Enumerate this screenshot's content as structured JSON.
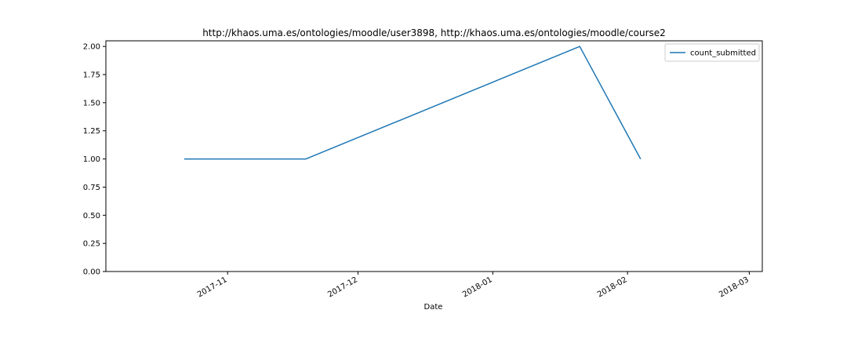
{
  "chart_data": {
    "type": "line",
    "title": "http://khaos.uma.es/ontologies/moodle/user3898, http://khaos.uma.es/ontologies/moodle/course2",
    "xlabel": "Date",
    "ylabel": "",
    "x_scale": "date",
    "xlim": [
      "2017-10-04",
      "2018-03-04"
    ],
    "ylim": [
      0,
      2.05
    ],
    "grid": false,
    "legend_position": "top-right",
    "x_ticks": [
      {
        "value": "2017-11-01",
        "label": "2017-11"
      },
      {
        "value": "2017-12-01",
        "label": "2017-12"
      },
      {
        "value": "2018-01-01",
        "label": "2018-01"
      },
      {
        "value": "2018-02-01",
        "label": "2018-02"
      },
      {
        "value": "2018-03-01",
        "label": "2018-03"
      }
    ],
    "y_ticks": [
      {
        "value": 0.0,
        "label": "0.00"
      },
      {
        "value": 0.25,
        "label": "0.25"
      },
      {
        "value": 0.5,
        "label": "0.50"
      },
      {
        "value": 0.75,
        "label": "0.75"
      },
      {
        "value": 1.0,
        "label": "1.00"
      },
      {
        "value": 1.25,
        "label": "1.25"
      },
      {
        "value": 1.5,
        "label": "1.50"
      },
      {
        "value": 1.75,
        "label": "1.75"
      },
      {
        "value": 2.0,
        "label": "2.00"
      }
    ],
    "series": [
      {
        "name": "count_submitted",
        "color": "#1f77b4",
        "x": [
          "2017-10-22",
          "2017-11-19",
          "2018-01-21",
          "2018-02-04"
        ],
        "y": [
          1,
          1,
          2,
          1
        ]
      }
    ]
  }
}
